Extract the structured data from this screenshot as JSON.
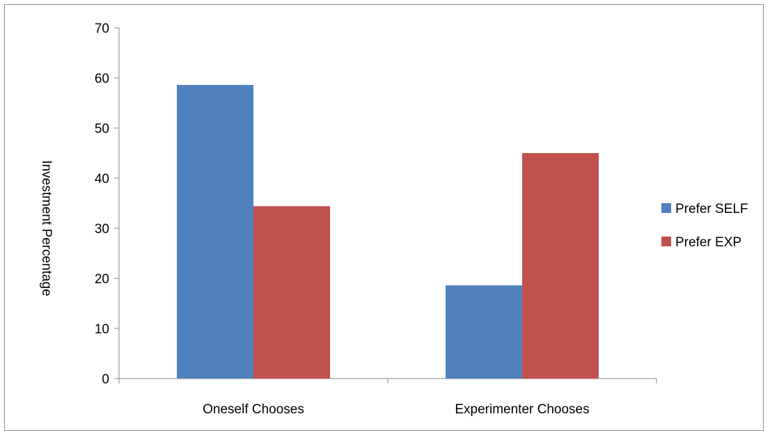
{
  "chart_data": {
    "type": "bar",
    "categories": [
      "Oneself Chooses",
      "Experimenter Chooses"
    ],
    "series": [
      {
        "name": "Prefer SELF",
        "values": [
          58.6,
          18.6
        ],
        "color": "#4f81bd"
      },
      {
        "name": "Prefer EXP",
        "values": [
          34.4,
          45.0
        ],
        "color": "#c0504d"
      }
    ],
    "ylabel": "Investment Percentage",
    "xlabel": "",
    "ylim": [
      0,
      70
    ],
    "yticks": [
      0,
      10,
      20,
      30,
      40,
      50,
      60,
      70
    ],
    "grid": false,
    "legend_position": "right"
  }
}
